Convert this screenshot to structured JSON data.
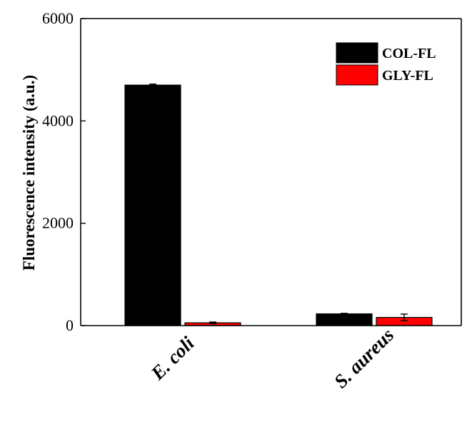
{
  "chart_data": {
    "type": "bar",
    "categories": [
      "E. coli",
      "S. aureus"
    ],
    "ylabel": "Fluorescence intensity (a.u.)",
    "xlabel": "",
    "ylim": [
      0,
      6000
    ],
    "yticks": [
      0,
      2000,
      4000,
      6000
    ],
    "yticks_labels": [
      "0",
      "2000",
      "4000",
      "6000"
    ],
    "legend_position": "top-right",
    "grid": false,
    "series": [
      {
        "name": "COL-FL",
        "color": "#000000",
        "values": [
          4700,
          230
        ],
        "errors": [
          20,
          10
        ]
      },
      {
        "name": "GLY-FL",
        "color": "#ff0000",
        "values": [
          55,
          160
        ],
        "errors": [
          15,
          65
        ]
      }
    ]
  }
}
